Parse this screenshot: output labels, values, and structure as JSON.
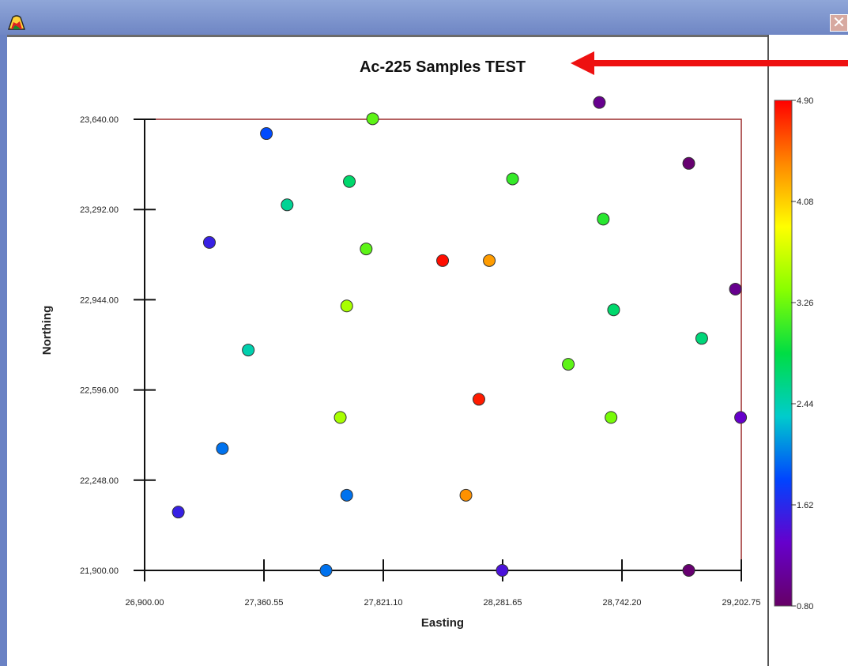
{
  "window": {
    "icon": "app-palette-icon",
    "close_icon": "close-icon",
    "close_glyph": "✕"
  },
  "annotation": {
    "type": "arrow",
    "direction": "left",
    "color": "#ee1111"
  },
  "chart_data": {
    "type": "scatter",
    "title": "Ac-225 Samples TEST",
    "xlabel": "Easting",
    "ylabel": "Northing",
    "xlim": [
      26900.0,
      29202.75
    ],
    "ylim": [
      21900.0,
      23640.0
    ],
    "x_ticks": [
      "26,900.00",
      "27,360.55",
      "27,821.10",
      "28,281.65",
      "28,742.20",
      "29,202.75"
    ],
    "y_ticks": [
      "21,900.00",
      "22,248.00",
      "22,596.00",
      "22,944.00",
      "23,292.00",
      "23,640.00"
    ],
    "colorbar": {
      "min": 0.8,
      "max": 4.9,
      "ticks": [
        "4.90",
        "4.08",
        "3.26",
        "2.44",
        "1.62",
        "0.80"
      ],
      "colors": [
        "#ff0000",
        "#ff8800",
        "#ffff00",
        "#88ff00",
        "#00dd44",
        "#00cccc",
        "#0044ff",
        "#6600cc",
        "#660066"
      ]
    },
    "grid": false,
    "points": [
      {
        "x": 27780,
        "y": 23642,
        "v": 3.2
      },
      {
        "x": 27370,
        "y": 23585,
        "v": 1.85
      },
      {
        "x": 28655,
        "y": 23705,
        "v": 1.0
      },
      {
        "x": 29000,
        "y": 23470,
        "v": 0.85
      },
      {
        "x": 27690,
        "y": 23400,
        "v": 2.7
      },
      {
        "x": 28320,
        "y": 23410,
        "v": 3.05
      },
      {
        "x": 27450,
        "y": 23310,
        "v": 2.55
      },
      {
        "x": 28670,
        "y": 23255,
        "v": 3.0
      },
      {
        "x": 27150,
        "y": 23165,
        "v": 1.55
      },
      {
        "x": 27755,
        "y": 23140,
        "v": 3.2
      },
      {
        "x": 28050,
        "y": 23095,
        "v": 4.85
      },
      {
        "x": 28230,
        "y": 23095,
        "v": 4.3
      },
      {
        "x": 29180,
        "y": 22985,
        "v": 1.0
      },
      {
        "x": 27680,
        "y": 22920,
        "v": 3.5
      },
      {
        "x": 28710,
        "y": 22905,
        "v": 2.7
      },
      {
        "x": 29050,
        "y": 22795,
        "v": 2.65
      },
      {
        "x": 27300,
        "y": 22750,
        "v": 2.45
      },
      {
        "x": 28535,
        "y": 22695,
        "v": 3.2
      },
      {
        "x": 28190,
        "y": 22560,
        "v": 4.8
      },
      {
        "x": 27655,
        "y": 22490,
        "v": 3.5
      },
      {
        "x": 28700,
        "y": 22490,
        "v": 3.3
      },
      {
        "x": 29200,
        "y": 22490,
        "v": 1.3
      },
      {
        "x": 27200,
        "y": 22370,
        "v": 2.0
      },
      {
        "x": 27680,
        "y": 22190,
        "v": 2.0
      },
      {
        "x": 28140,
        "y": 22190,
        "v": 4.35
      },
      {
        "x": 27030,
        "y": 22125,
        "v": 1.55
      },
      {
        "x": 27600,
        "y": 21900,
        "v": 2.0
      },
      {
        "x": 28280,
        "y": 21900,
        "v": 1.45
      },
      {
        "x": 29000,
        "y": 21900,
        "v": 0.85
      }
    ]
  }
}
